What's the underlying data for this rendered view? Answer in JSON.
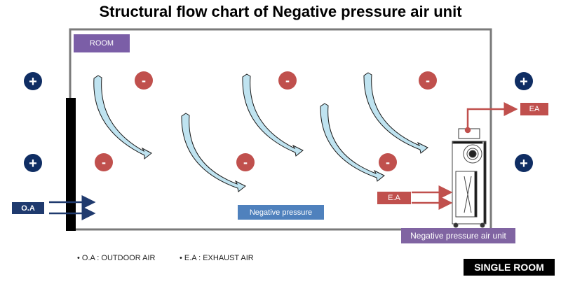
{
  "title": "Structural flow chart of Negative pressure air unit",
  "labels": {
    "room": "ROOM",
    "negative_pressure": "Negative pressure",
    "outdoor_air": "O.A",
    "exhaust_air_out": "EA",
    "exhaust_air_in": "E.A",
    "unit": "Negative pressure air unit",
    "single_room": "SINGLE ROOM"
  },
  "legend": [
    "• O.A : OUTDOOR AIR",
    "• E.A : EXHAUST AIR"
  ],
  "signs": {
    "positive": "+",
    "negative": "-"
  },
  "colors": {
    "room_label": "#7b5ea7",
    "negative_pressure_label": "#4f81bd",
    "outdoor_air": "#1f3a6e",
    "exhaust_air": "#c0504d",
    "unit_label": "#8064a2",
    "positive_sign": "#0f2d63",
    "negative_sign": "#c0504d",
    "airflow_arrow": "#bfe3f0"
  }
}
